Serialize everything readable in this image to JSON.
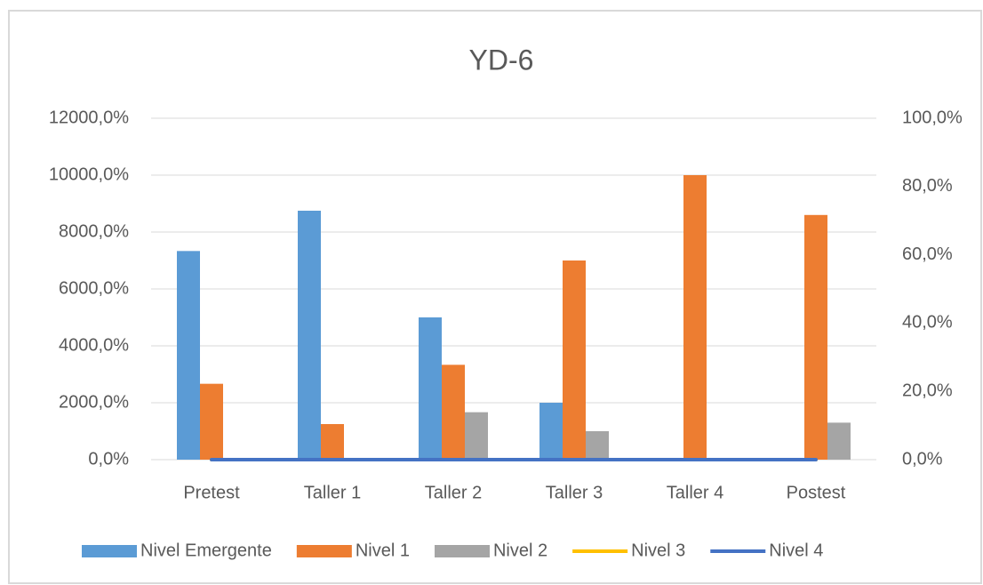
{
  "chart_data": {
    "type": "bar",
    "title": "YD-6",
    "categories": [
      "Pretest",
      "Taller 1",
      "Taller 2",
      "Taller 3",
      "Taller 4",
      "Postest"
    ],
    "series": [
      {
        "name": "Nivel Emergente",
        "type": "bar",
        "color": "#5b9bd5",
        "values": [
          7333.3,
          8750,
          5000,
          2000,
          0,
          0
        ]
      },
      {
        "name": "Nivel 1",
        "type": "bar",
        "color": "#ed7d31",
        "values": [
          2666.7,
          1250,
          3333.3,
          7000,
          10000,
          8600
        ]
      },
      {
        "name": "Nivel 2",
        "type": "bar",
        "color": "#a5a5a5",
        "values": [
          0,
          0,
          1666.7,
          1000,
          0,
          1300
        ]
      },
      {
        "name": "Nivel 3",
        "type": "line",
        "axis": "y2",
        "color": "#ffc000",
        "values": [
          0,
          0,
          0,
          0,
          0,
          0
        ]
      },
      {
        "name": "Nivel 4",
        "type": "line",
        "axis": "y2",
        "color": "#4472c4",
        "values": [
          0,
          0,
          0,
          0,
          0,
          0
        ]
      }
    ],
    "ylim": [
      0,
      12000
    ],
    "yticks": [
      {
        "value": 0,
        "label": "0,0%"
      },
      {
        "value": 2000,
        "label": "2000,0%"
      },
      {
        "value": 4000,
        "label": "4000,0%"
      },
      {
        "value": 6000,
        "label": "6000,0%"
      },
      {
        "value": 8000,
        "label": "8000,0%"
      },
      {
        "value": 10000,
        "label": "10000,0%"
      },
      {
        "value": 12000,
        "label": "12000,0%"
      }
    ],
    "y2lim": [
      0,
      100
    ],
    "y2ticks": [
      {
        "value": 0,
        "label": "0,0%"
      },
      {
        "value": 20,
        "label": "20,0%"
      },
      {
        "value": 40,
        "label": "40,0%"
      },
      {
        "value": 60,
        "label": "60,0%"
      },
      {
        "value": 80,
        "label": "80,0%"
      },
      {
        "value": 100,
        "label": "100,0%"
      }
    ],
    "grid": true,
    "legend": "bottom"
  }
}
